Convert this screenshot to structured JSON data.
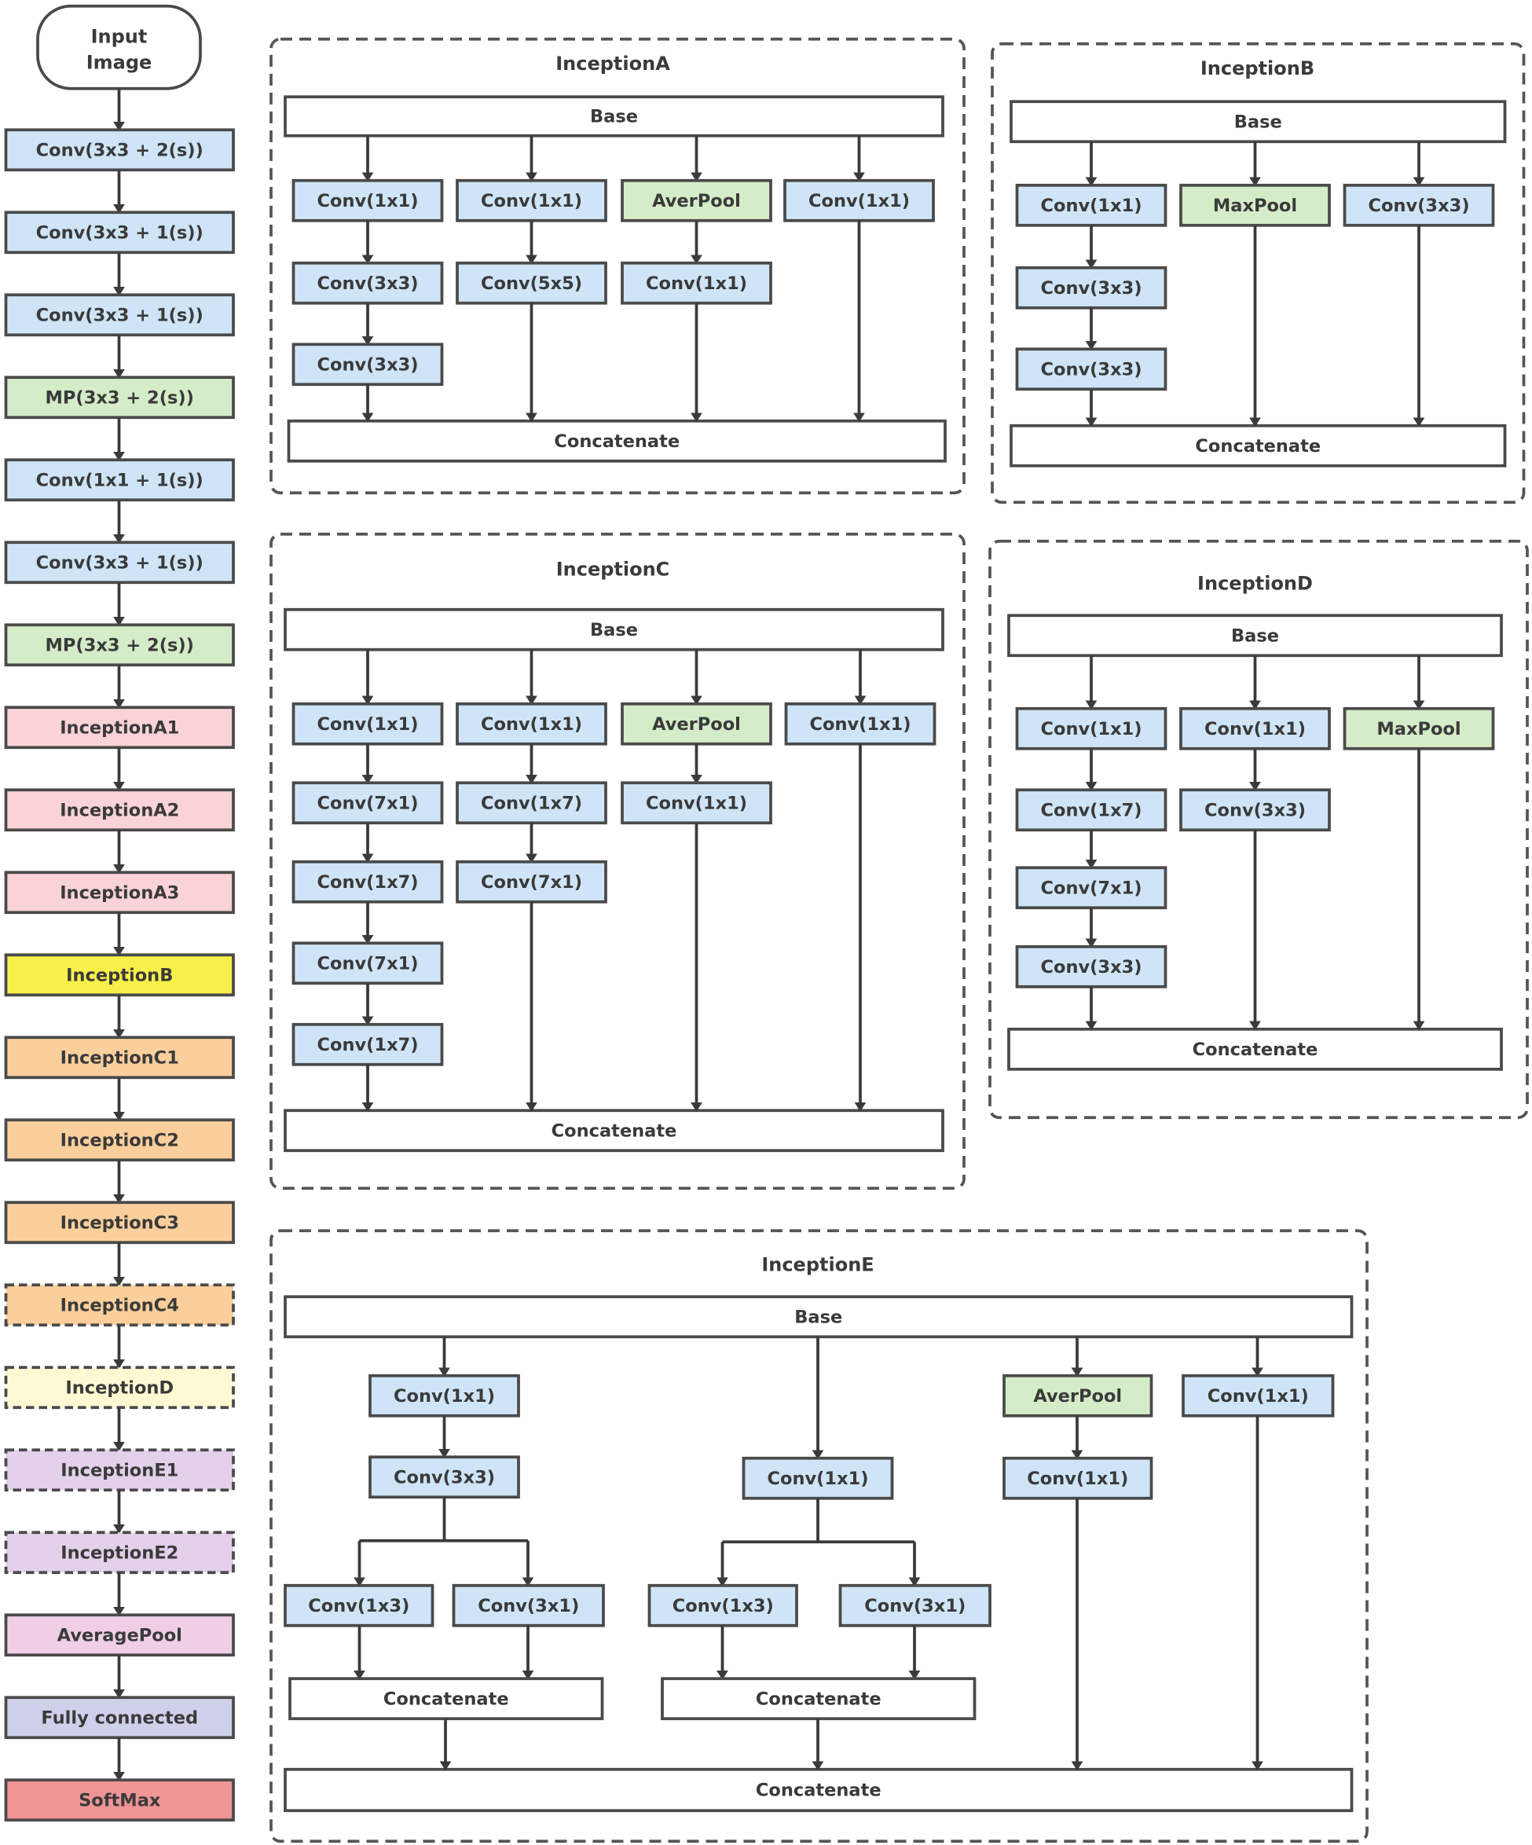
{
  "colors": {
    "conv": "#cfe5f7",
    "pool": "#d5ecc8",
    "inception_a": "#f9d3d7",
    "inception_b": "#f7f04a",
    "inception_c": "#fbcf9c",
    "inception_d": "#fdfad3",
    "inception_e": "#e3d0ea",
    "average_pool": "#f0cfe6",
    "fully_connected": "#cfd0ea",
    "softmax": "#f09595",
    "plain": "#ffffff",
    "stroke": "#4a4a4a"
  },
  "pipeline": {
    "input": "Input\nImage",
    "steps": [
      {
        "label": "Conv(3x3 + 2(s))",
        "type": "conv",
        "dashed": false
      },
      {
        "label": "Conv(3x3 + 1(s))",
        "type": "conv",
        "dashed": false
      },
      {
        "label": "Conv(3x3 + 1(s))",
        "type": "conv",
        "dashed": false
      },
      {
        "label": "MP(3x3 + 2(s))",
        "type": "pool",
        "dashed": false
      },
      {
        "label": "Conv(1x1 + 1(s))",
        "type": "conv",
        "dashed": false
      },
      {
        "label": "Conv(3x3 + 1(s))",
        "type": "conv",
        "dashed": false
      },
      {
        "label": "MP(3x3 + 2(s))",
        "type": "pool",
        "dashed": false
      },
      {
        "label": "InceptionA1",
        "type": "inception_a",
        "dashed": false
      },
      {
        "label": "InceptionA2",
        "type": "inception_a",
        "dashed": false
      },
      {
        "label": "InceptionA3",
        "type": "inception_a",
        "dashed": false
      },
      {
        "label": "InceptionB",
        "type": "inception_b",
        "dashed": false
      },
      {
        "label": "InceptionC1",
        "type": "inception_c",
        "dashed": false
      },
      {
        "label": "InceptionC2",
        "type": "inception_c",
        "dashed": false
      },
      {
        "label": "InceptionC3",
        "type": "inception_c",
        "dashed": false
      },
      {
        "label": "InceptionC4",
        "type": "inception_c",
        "dashed": true
      },
      {
        "label": "InceptionD",
        "type": "inception_d",
        "dashed": true
      },
      {
        "label": "InceptionE1",
        "type": "inception_e",
        "dashed": true
      },
      {
        "label": "InceptionE2",
        "type": "inception_e",
        "dashed": true
      },
      {
        "label": "AveragePool",
        "type": "average_pool",
        "dashed": false
      },
      {
        "label": "Fully connected",
        "type": "fully_connected",
        "dashed": false
      },
      {
        "label": "SoftMax",
        "type": "softmax",
        "dashed": false
      }
    ]
  },
  "modules": {
    "inception_a": {
      "title": "InceptionA",
      "base": "Base",
      "concat": "Concatenate",
      "branches": [
        [
          {
            "label": "Conv(1x1)",
            "type": "conv"
          },
          {
            "label": "Conv(3x3)",
            "type": "conv"
          },
          {
            "label": "Conv(3x3)",
            "type": "conv"
          }
        ],
        [
          {
            "label": "Conv(1x1)",
            "type": "conv"
          },
          {
            "label": "Conv(5x5)",
            "type": "conv"
          }
        ],
        [
          {
            "label": "AverPool",
            "type": "pool"
          },
          {
            "label": "Conv(1x1)",
            "type": "conv"
          }
        ],
        [
          {
            "label": "Conv(1x1)",
            "type": "conv"
          }
        ]
      ]
    },
    "inception_b": {
      "title": "InceptionB",
      "base": "Base",
      "concat": "Concatenate",
      "branches": [
        [
          {
            "label": "Conv(1x1)",
            "type": "conv"
          },
          {
            "label": "Conv(3x3)",
            "type": "conv"
          },
          {
            "label": "Conv(3x3)",
            "type": "conv"
          }
        ],
        [
          {
            "label": "MaxPool",
            "type": "pool"
          }
        ],
        [
          {
            "label": "Conv(3x3)",
            "type": "conv"
          }
        ]
      ]
    },
    "inception_c": {
      "title": "InceptionC",
      "base": "Base",
      "concat": "Concatenate",
      "branches": [
        [
          {
            "label": "Conv(1x1)",
            "type": "conv"
          },
          {
            "label": "Conv(7x1)",
            "type": "conv"
          },
          {
            "label": "Conv(1x7)",
            "type": "conv"
          },
          {
            "label": "Conv(7x1)",
            "type": "conv"
          },
          {
            "label": "Conv(1x7)",
            "type": "conv"
          }
        ],
        [
          {
            "label": "Conv(1x1)",
            "type": "conv"
          },
          {
            "label": "Conv(1x7)",
            "type": "conv"
          },
          {
            "label": "Conv(7x1)",
            "type": "conv"
          }
        ],
        [
          {
            "label": "AverPool",
            "type": "pool"
          },
          {
            "label": "Conv(1x1)",
            "type": "conv"
          }
        ],
        [
          {
            "label": "Conv(1x1)",
            "type": "conv"
          }
        ]
      ]
    },
    "inception_d": {
      "title": "InceptionD",
      "base": "Base",
      "concat": "Concatenate",
      "branches": [
        [
          {
            "label": "Conv(1x1)",
            "type": "conv"
          },
          {
            "label": "Conv(1x7)",
            "type": "conv"
          },
          {
            "label": "Conv(7x1)",
            "type": "conv"
          },
          {
            "label": "Conv(3x3)",
            "type": "conv"
          }
        ],
        [
          {
            "label": "Conv(1x1)",
            "type": "conv"
          },
          {
            "label": "Conv(3x3)",
            "type": "conv"
          }
        ],
        [
          {
            "label": "MaxPool",
            "type": "pool"
          }
        ]
      ]
    },
    "inception_e": {
      "title": "InceptionE",
      "base": "Base",
      "concat": "Concatenate",
      "branch1": {
        "stem": [
          {
            "label": "Conv(1x1)",
            "type": "conv"
          },
          {
            "label": "Conv(3x3)",
            "type": "conv"
          }
        ],
        "split": [
          {
            "label": "Conv(1x3)",
            "type": "conv"
          },
          {
            "label": "Conv(3x1)",
            "type": "conv"
          }
        ],
        "concat": "Concatenate"
      },
      "branch2": {
        "stem": [
          {
            "label": "Conv(1x1)",
            "type": "conv"
          }
        ],
        "split": [
          {
            "label": "Conv(1x3)",
            "type": "conv"
          },
          {
            "label": "Conv(3x1)",
            "type": "conv"
          }
        ],
        "concat": "Concatenate"
      },
      "branch3": [
        {
          "label": "AverPool",
          "type": "pool"
        },
        {
          "label": "Conv(1x1)",
          "type": "conv"
        }
      ],
      "branch4": [
        {
          "label": "Conv(1x1)",
          "type": "conv"
        }
      ]
    }
  }
}
